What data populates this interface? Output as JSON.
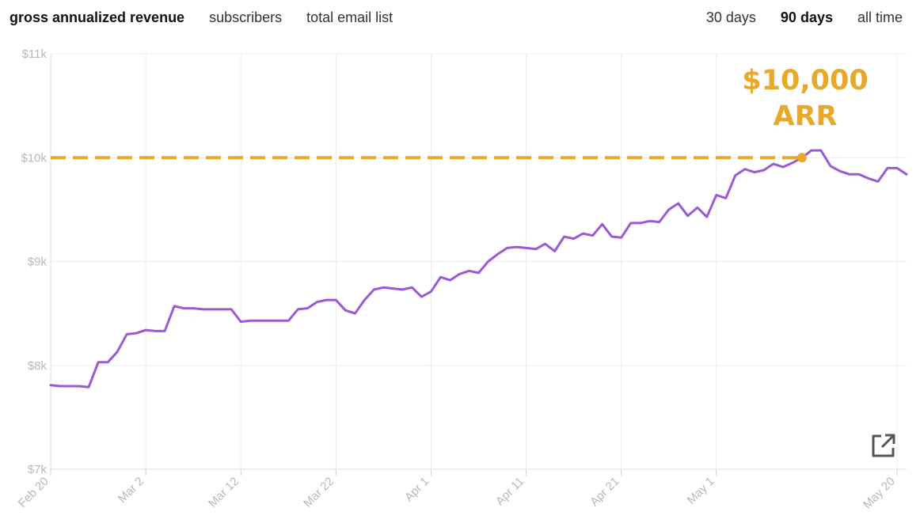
{
  "tabs": {
    "metric": [
      {
        "label": "gross annualized revenue",
        "active": true
      },
      {
        "label": "subscribers",
        "active": false
      },
      {
        "label": "total email list",
        "active": false
      }
    ],
    "range": [
      {
        "label": "30 days",
        "active": false
      },
      {
        "label": "90 days",
        "active": true
      },
      {
        "label": "all time",
        "active": false
      }
    ]
  },
  "icons": {
    "export": "external-link-icon"
  },
  "colors": {
    "line": "#9b59d6",
    "annotation": "#e8a829",
    "grid": "#ececec",
    "tick": "#b8b8b8"
  },
  "chart_data": {
    "type": "line",
    "title": "",
    "xlabel": "",
    "ylabel": "",
    "ylim": [
      7000,
      11000
    ],
    "y_ticks": [
      "$7k",
      "$8k",
      "$9k",
      "$10k",
      "$11k"
    ],
    "y_tick_values": [
      7000,
      8000,
      9000,
      10000,
      11000
    ],
    "x_ticks": [
      "Feb 20",
      "Mar 2",
      "Mar 12",
      "Mar 22",
      "Apr 1",
      "Apr 11",
      "Apr 21",
      "May 1",
      "May 20"
    ],
    "x_tick_days": [
      0,
      10,
      20,
      30,
      40,
      50,
      60,
      70,
      89
    ],
    "grid": true,
    "series": [
      {
        "name": "",
        "values": [
          7810,
          7800,
          7800,
          7800,
          7790,
          8030,
          8030,
          8130,
          8300,
          8310,
          8340,
          8330,
          8330,
          8570,
          8550,
          8550,
          8540,
          8540,
          8540,
          8540,
          8420,
          8430,
          8430,
          8430,
          8430,
          8430,
          8540,
          8550,
          8610,
          8630,
          8630,
          8530,
          8500,
          8630,
          8730,
          8750,
          8740,
          8730,
          8750,
          8660,
          8710,
          8850,
          8820,
          8880,
          8910,
          8890,
          9000,
          9070,
          9130,
          9140,
          9130,
          9120,
          9170,
          9100,
          9240,
          9220,
          9270,
          9250,
          9360,
          9240,
          9230,
          9370,
          9370,
          9390,
          9380,
          9500,
          9560,
          9440,
          9520,
          9430,
          9640,
          9610,
          9830,
          9890,
          9860,
          9880,
          9940,
          9910,
          9950,
          10000,
          10070,
          10070,
          9920,
          9870,
          9840,
          9840,
          9800,
          9770,
          9900,
          9900,
          9840
        ]
      }
    ],
    "annotation": {
      "lines": [
        "$10,000",
        "ARR"
      ],
      "value": 10000,
      "day": 79
    }
  }
}
